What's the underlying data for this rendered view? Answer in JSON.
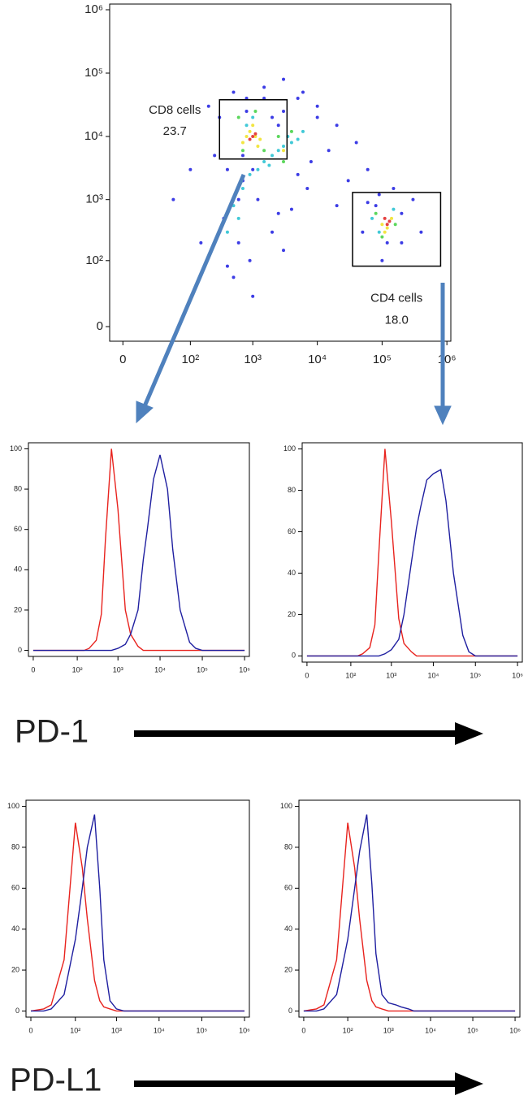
{
  "row_labels": [
    "PD-1",
    "PD-L1"
  ],
  "chart_data": [
    {
      "type": "scatter",
      "xscale": "biexponential",
      "yscale": "biexponential",
      "xlim": [
        -6,
        1150000
      ],
      "ylim": [
        -7,
        1230000
      ],
      "xticks": [
        0,
        {
          "value": 100,
          "label": "10²"
        },
        {
          "value": 1000,
          "label": "10³"
        },
        {
          "value": 10000,
          "label": "10⁴"
        },
        {
          "value": 100000,
          "label": "10⁵"
        },
        {
          "value": 1000000,
          "label": "10⁶"
        }
      ],
      "yticks": [
        0,
        {
          "value": 100,
          "label": "10²"
        },
        {
          "value": 1000,
          "label": "10³"
        },
        {
          "value": 10000,
          "label": "10⁴"
        },
        {
          "value": 100000,
          "label": "10⁵"
        },
        {
          "value": 1000000,
          "label": "10⁶"
        }
      ],
      "series": [
        {
          "color": "#1a1ae0",
          "x": [
            200,
            300,
            500,
            800,
            1500,
            3000,
            6000,
            10000,
            20000,
            40000,
            60000,
            150000,
            300000,
            250,
            400,
            700,
            1200,
            2500,
            5000,
            8000,
            15000,
            30000,
            80000,
            200000,
            350,
            600,
            900,
            2000,
            4000,
            150,
            100,
            500,
            1000,
            3000,
            7000,
            20000,
            50000,
            100000,
            400000,
            50,
            300,
            400,
            600,
            1000,
            2000,
            5000,
            10000,
            3000,
            1500,
            800,
            700,
            2500,
            120000,
            90000,
            200000,
            60000
          ],
          "y": [
            30000,
            20000,
            50000,
            40000,
            60000,
            80000,
            50000,
            30000,
            15000,
            8000,
            3000,
            1500,
            1000,
            5000,
            3000,
            2000,
            1000,
            600,
            2500,
            4000,
            6000,
            2000,
            800,
            200,
            500,
            200,
            100,
            300,
            700,
            200,
            3000,
            50,
            20,
            150,
            1500,
            800,
            300,
            100,
            300,
            1000,
            300,
            80,
            1000,
            3000,
            20000,
            40000,
            20000,
            25000,
            40000,
            25000,
            5000,
            15000,
            200,
            1200,
            600,
            900
          ]
        },
        {
          "color": "#20c0d0",
          "x": [
            500,
            700,
            900,
            1200,
            1500,
            2000,
            2500,
            3000,
            4000,
            5000,
            6000,
            800,
            1000,
            1800,
            3500,
            90000,
            150000,
            70000,
            600,
            400
          ],
          "y": [
            800,
            1500,
            2500,
            3000,
            4000,
            5000,
            6000,
            7000,
            8000,
            9000,
            12000,
            15000,
            20000,
            3500,
            10000,
            300,
            700,
            500,
            500,
            300
          ]
        },
        {
          "color": "#40d040",
          "x": [
            600,
            1500,
            2500,
            4000,
            700,
            1100,
            100000,
            160000,
            80000,
            3000
          ],
          "y": [
            20000,
            6000,
            10000,
            12000,
            6000,
            25000,
            250,
            400,
            600,
            4000
          ]
        },
        {
          "color": "#f0e020",
          "x": [
            700,
            900,
            1100,
            1300,
            1000,
            800,
            1200,
            100000,
            120000,
            140000,
            110000,
            3000
          ],
          "y": [
            8000,
            12000,
            10000,
            9000,
            15000,
            10000,
            7000,
            400,
            350,
            500,
            300,
            6000
          ]
        },
        {
          "color": "#e02020",
          "x": [
            1000,
            900,
            1100,
            120000,
            130000,
            110000
          ],
          "y": [
            10000,
            9000,
            11000,
            400,
            450,
            500
          ]
        }
      ],
      "gates": [
        {
          "name": "CD8 cells",
          "value": 23.7,
          "value_label": "23.7",
          "x": [
            300,
            3400
          ],
          "y": [
            4400,
            38000
          ]
        },
        {
          "name": "CD4 cells",
          "value": 18.0,
          "value_label": "18.0",
          "x": [
            35000,
            800000
          ],
          "y": [
            80,
            1300
          ]
        }
      ]
    },
    {
      "type": "line",
      "xscale": "biexponential",
      "yscale": "linear",
      "xlim": [
        -3,
        1300000
      ],
      "ylim": [
        -3,
        103
      ],
      "xticks": [
        0,
        {
          "value": 100,
          "label": "10²"
        },
        {
          "value": 1000,
          "label": "10³"
        },
        {
          "value": 10000,
          "label": "10⁴"
        },
        {
          "value": 100000,
          "label": "10⁵"
        },
        {
          "value": 1000000,
          "label": "10⁶"
        }
      ],
      "yticks": [
        0,
        20,
        40,
        60,
        80,
        100
      ],
      "x": [
        0,
        10,
        20,
        50,
        100,
        150,
        200,
        300,
        400,
        500,
        700,
        1000,
        1500,
        2000,
        3000,
        4000,
        5000,
        7000,
        10000,
        15000,
        20000,
        30000,
        50000,
        70000,
        100000,
        200000,
        500000,
        1000000
      ],
      "series": [
        {
          "color": "#e8231e",
          "values": [
            0,
            0,
            0,
            0,
            0,
            0,
            1,
            5,
            18,
            55,
            100,
            70,
            20,
            8,
            2,
            0,
            0,
            0,
            0,
            0,
            0,
            0,
            0,
            0,
            0,
            0,
            0,
            0
          ]
        },
        {
          "color": "#1f1fa0",
          "values": [
            0,
            0,
            0,
            0,
            0,
            0,
            0,
            0,
            0,
            0,
            0,
            1,
            3,
            8,
            20,
            45,
            60,
            85,
            97,
            80,
            50,
            20,
            4,
            1,
            0,
            0,
            0,
            0
          ]
        }
      ]
    },
    {
      "type": "line",
      "xscale": "biexponential",
      "yscale": "linear",
      "xlim": [
        -3,
        1300000
      ],
      "ylim": [
        -3,
        103
      ],
      "xticks": [
        0,
        {
          "value": 100,
          "label": "10²"
        },
        {
          "value": 1000,
          "label": "10³"
        },
        {
          "value": 10000,
          "label": "10⁴"
        },
        {
          "value": 100000,
          "label": "10⁵"
        },
        {
          "value": 1000000,
          "label": "10⁶"
        }
      ],
      "yticks": [
        0,
        20,
        40,
        60,
        80,
        100
      ],
      "x": [
        0,
        10,
        20,
        50,
        100,
        150,
        200,
        300,
        400,
        500,
        700,
        1000,
        1500,
        2000,
        3000,
        4000,
        5000,
        7000,
        10000,
        15000,
        20000,
        30000,
        50000,
        70000,
        100000,
        200000,
        500000,
        1000000
      ],
      "series": [
        {
          "color": "#e8231e",
          "values": [
            0,
            0,
            0,
            0,
            0,
            0,
            1,
            4,
            15,
            50,
            100,
            65,
            18,
            6,
            2,
            0,
            0,
            0,
            0,
            0,
            0,
            0,
            0,
            0,
            0,
            0,
            0,
            0
          ]
        },
        {
          "color": "#1f1fa0",
          "values": [
            0,
            0,
            0,
            0,
            0,
            0,
            0,
            0,
            0,
            0,
            1,
            3,
            8,
            20,
            45,
            62,
            72,
            85,
            88,
            90,
            75,
            40,
            10,
            2,
            0,
            0,
            0,
            0
          ]
        }
      ]
    },
    {
      "type": "line",
      "xscale": "biexponential",
      "yscale": "linear",
      "xlim": [
        -3,
        1300000
      ],
      "ylim": [
        -3,
        103
      ],
      "xticks": [
        0,
        {
          "value": 100,
          "label": "10²"
        },
        {
          "value": 1000,
          "label": "10³"
        },
        {
          "value": 10000,
          "label": "10⁴"
        },
        {
          "value": 100000,
          "label": "10⁵"
        },
        {
          "value": 1000000,
          "label": "10⁶"
        }
      ],
      "yticks": [
        0,
        20,
        40,
        60,
        80,
        100
      ],
      "x": [
        0,
        10,
        20,
        50,
        100,
        150,
        200,
        300,
        400,
        500,
        700,
        1000,
        1500,
        2000,
        3000,
        4000,
        5000,
        7000,
        10000,
        15000,
        20000,
        30000,
        50000,
        70000,
        100000,
        200000,
        500000,
        1000000
      ],
      "series": [
        {
          "color": "#e8231e",
          "values": [
            0,
            1,
            3,
            25,
            92,
            70,
            45,
            15,
            5,
            2,
            1,
            0,
            0,
            0,
            0,
            0,
            0,
            0,
            0,
            0,
            0,
            0,
            0,
            0,
            0,
            0,
            0,
            0
          ]
        },
        {
          "color": "#1f1fa0",
          "values": [
            0,
            0,
            1,
            8,
            35,
            60,
            80,
            96,
            60,
            25,
            5,
            1,
            0,
            0,
            0,
            0,
            0,
            0,
            0,
            0,
            0,
            0,
            0,
            0,
            0,
            0,
            0,
            0
          ]
        }
      ]
    },
    {
      "type": "line",
      "xscale": "biexponential",
      "yscale": "linear",
      "xlim": [
        -3,
        1300000
      ],
      "ylim": [
        -3,
        103
      ],
      "xticks": [
        0,
        {
          "value": 100,
          "label": "10²"
        },
        {
          "value": 1000,
          "label": "10³"
        },
        {
          "value": 10000,
          "label": "10⁴"
        },
        {
          "value": 100000,
          "label": "10⁵"
        },
        {
          "value": 1000000,
          "label": "10⁶"
        }
      ],
      "yticks": [
        0,
        20,
        40,
        60,
        80,
        100
      ],
      "x": [
        0,
        10,
        20,
        50,
        100,
        150,
        200,
        300,
        400,
        500,
        700,
        1000,
        1500,
        2000,
        3000,
        4000,
        5000,
        7000,
        10000,
        15000,
        20000,
        30000,
        50000,
        70000,
        100000,
        200000,
        500000,
        1000000
      ],
      "series": [
        {
          "color": "#e8231e",
          "values": [
            0,
            1,
            3,
            25,
            92,
            70,
            45,
            15,
            5,
            2,
            1,
            0,
            0,
            0,
            0,
            0,
            0,
            0,
            0,
            0,
            0,
            0,
            0,
            0,
            0,
            0,
            0,
            0
          ]
        },
        {
          "color": "#1f1fa0",
          "values": [
            0,
            0,
            1,
            8,
            35,
            60,
            78,
            96,
            62,
            28,
            8,
            4,
            3,
            2,
            1,
            0,
            0,
            0,
            0,
            0,
            0,
            0,
            0,
            0,
            0,
            0,
            0,
            0
          ]
        }
      ]
    }
  ]
}
